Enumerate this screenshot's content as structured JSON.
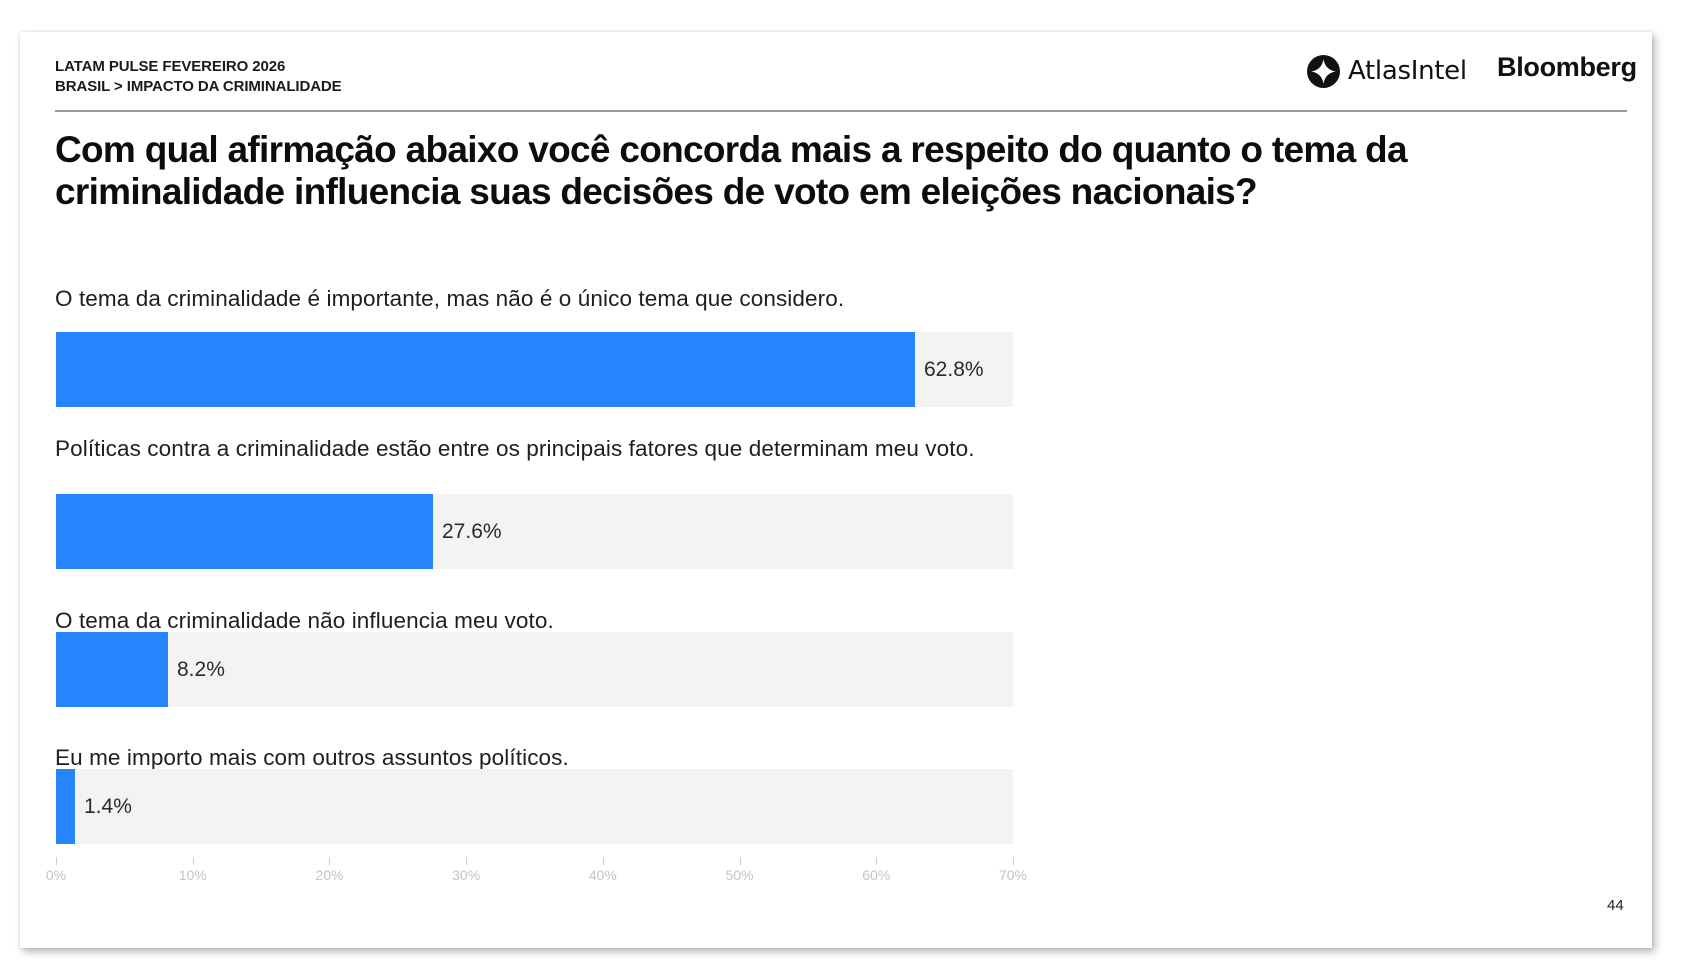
{
  "header": {
    "line1": "LATAM PULSE FEVEREIRO 2026",
    "line2": "BRASIL > IMPACTO DA CRIMINALIDADE",
    "logos": {
      "atlas": {
        "icon": "atlasintel-logo-icon",
        "name": "AtlasIntel"
      },
      "bloomberg": "Bloomberg"
    }
  },
  "title": "Com qual afirmação abaixo você concorda mais a respeito do quanto o tema da criminalidade influencia suas decisões de voto em eleições nacionais?",
  "colors": {
    "bar": "#2684ff",
    "track": "#f3f3f2",
    "axis_text": "#c4c4c4"
  },
  "bars": [
    {
      "label": "O tema da criminalidade é importante, mas não é o único tema que considero.",
      "value": 62.8,
      "value_label": "62.8%"
    },
    {
      "label": "Políticas contra a criminalidade estão entre os principais fatores que determinam meu voto.",
      "value": 27.6,
      "value_label": "27.6%"
    },
    {
      "label": "O tema da criminalidade não influencia meu voto.",
      "value": 8.2,
      "value_label": "8.2%"
    },
    {
      "label": "Eu me importo mais com outros assuntos políticos.",
      "value": 1.4,
      "value_label": "1.4%"
    }
  ],
  "axis": {
    "ticks": [
      "0%",
      "10%",
      "20%",
      "30%",
      "40%",
      "50%",
      "60%",
      "70%"
    ],
    "max": 70
  },
  "page_number": "44",
  "chart_data": {
    "type": "bar",
    "orientation": "horizontal",
    "title": "Com qual afirmação abaixo você concorda mais a respeito do quanto o tema da criminalidade influencia suas decisões de voto em eleições nacionais?",
    "subtitle": "LATAM PULSE FEVEREIRO 2026 — BRASIL > IMPACTO DA CRIMINALIDADE",
    "categories": [
      "O tema da criminalidade é importante, mas não é o único tema que considero.",
      "Políticas contra a criminalidade estão entre os principais fatores que determinam meu voto.",
      "O tema da criminalidade não influencia meu voto.",
      "Eu me importo mais com outros assuntos políticos."
    ],
    "values": [
      62.8,
      27.6,
      8.2,
      1.4
    ],
    "value_labels": [
      "62.8%",
      "27.6%",
      "8.2%",
      "1.4%"
    ],
    "xlabel": "",
    "ylabel": "",
    "xlim": [
      0,
      70
    ],
    "xticks": [
      "0%",
      "10%",
      "20%",
      "30%",
      "40%",
      "50%",
      "60%",
      "70%"
    ],
    "grid": false,
    "legend": null
  }
}
